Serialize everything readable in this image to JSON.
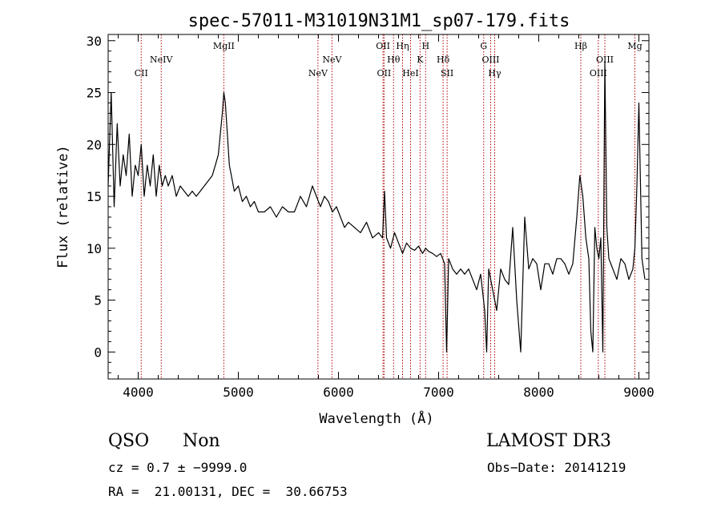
{
  "chart_data": {
    "type": "line",
    "title": "spec-57011-M31019N31M1_sp07-179.fits",
    "xlabel": "Wavelength (Å)",
    "ylabel": "Flux (relative)",
    "xlim": [
      3700,
      9100
    ],
    "ylim": [
      -2.6,
      30.6
    ],
    "x_ticks": [
      4000,
      5000,
      6000,
      7000,
      8000,
      9000
    ],
    "y_ticks": [
      0,
      5,
      10,
      15,
      20,
      25,
      30
    ],
    "spectrum_color": "#000000",
    "line_marker_color": "#b00000",
    "emission_lines": [
      {
        "label": "CII",
        "wavelength": 4030,
        "row": 2
      },
      {
        "label": "NeIV",
        "wavelength": 4230,
        "row": 1
      },
      {
        "label": "MgII",
        "wavelength": 4855,
        "row": 0
      },
      {
        "label": "NeV",
        "wavelength": 5795,
        "row": 2
      },
      {
        "label": "NeV",
        "wavelength": 5935,
        "row": 1
      },
      {
        "label": "OII",
        "wavelength": 6445,
        "row": 0
      },
      {
        "label": "OII",
        "wavelength": 6455,
        "row": 2
      },
      {
        "label": "Hθ",
        "wavelength": 6550,
        "row": 1
      },
      {
        "label": "Hη",
        "wavelength": 6640,
        "row": 0
      },
      {
        "label": "HeI",
        "wavelength": 6720,
        "row": 2
      },
      {
        "label": "K",
        "wavelength": 6815,
        "row": 1
      },
      {
        "label": "H",
        "wavelength": 6870,
        "row": 0
      },
      {
        "label": "Hδ",
        "wavelength": 7045,
        "row": 1
      },
      {
        "label": "SII",
        "wavelength": 7085,
        "row": 2
      },
      {
        "label": "G",
        "wavelength": 7450,
        "row": 0
      },
      {
        "label": "OIII",
        "wavelength": 7520,
        "row": 1
      },
      {
        "label": "Hγ",
        "wavelength": 7560,
        "row": 2
      },
      {
        "label": "Hβ",
        "wavelength": 8420,
        "row": 0
      },
      {
        "label": "OIII",
        "wavelength": 8595,
        "row": 2
      },
      {
        "label": "OIII",
        "wavelength": 8660,
        "row": 1
      },
      {
        "label": "Mg",
        "wavelength": 8960,
        "row": 0
      }
    ],
    "spectrum": {
      "x": [
        3700,
        3730,
        3760,
        3790,
        3820,
        3850,
        3880,
        3910,
        3940,
        3970,
        4000,
        4030,
        4060,
        4090,
        4120,
        4150,
        4180,
        4210,
        4240,
        4270,
        4300,
        4340,
        4380,
        4420,
        4460,
        4500,
        4540,
        4580,
        4620,
        4660,
        4700,
        4740,
        4770,
        4800,
        4820,
        4840,
        4855,
        4870,
        4890,
        4910,
        4930,
        4960,
        5000,
        5040,
        5080,
        5120,
        5160,
        5200,
        5260,
        5320,
        5380,
        5440,
        5500,
        5560,
        5620,
        5680,
        5740,
        5780,
        5820,
        5860,
        5900,
        5940,
        5980,
        6020,
        6060,
        6100,
        6160,
        6220,
        6280,
        6340,
        6400,
        6440,
        6460,
        6480,
        6520,
        6560,
        6600,
        6640,
        6680,
        6720,
        6760,
        6800,
        6840,
        6870,
        6900,
        6940,
        6980,
        7020,
        7060,
        7080,
        7100,
        7140,
        7180,
        7220,
        7260,
        7300,
        7340,
        7380,
        7420,
        7460,
        7480,
        7500,
        7540,
        7580,
        7620,
        7660,
        7700,
        7740,
        7780,
        7820,
        7860,
        7900,
        7940,
        7980,
        8020,
        8060,
        8100,
        8140,
        8180,
        8220,
        8260,
        8300,
        8340,
        8380,
        8410,
        8440,
        8470,
        8500,
        8520,
        8540,
        8560,
        8580,
        8600,
        8620,
        8640,
        8660,
        8680,
        8700,
        8740,
        8780,
        8820,
        8860,
        8900,
        8940,
        8960,
        8980,
        9000,
        9030,
        9060
      ],
      "flux": [
        16,
        25,
        14,
        22,
        16,
        19,
        17,
        21,
        15,
        18,
        17,
        20,
        15,
        18,
        16,
        19,
        15,
        18,
        16,
        17,
        16,
        17,
        15,
        16,
        15.5,
        15,
        15.5,
        15,
        15.5,
        16,
        16.5,
        17,
        18,
        19,
        21,
        23,
        25,
        24,
        21,
        18,
        17,
        15.5,
        16,
        14.5,
        15,
        14,
        14.5,
        13.5,
        13.5,
        14,
        13,
        14,
        13.5,
        13.5,
        15,
        14,
        16,
        15,
        14,
        15,
        14.5,
        13.5,
        14,
        13,
        12,
        12.5,
        12,
        11.5,
        12.5,
        11,
        11.5,
        11,
        15.5,
        11,
        10,
        11.5,
        10.5,
        9.5,
        10.5,
        10,
        9.8,
        10.2,
        9.5,
        10,
        9.7,
        9.5,
        9.2,
        9.5,
        8.5,
        0,
        9,
        8,
        7.5,
        8,
        7.5,
        8,
        7,
        6,
        7.5,
        4,
        0,
        8,
        6,
        4,
        8,
        7,
        6.5,
        12,
        5,
        0,
        13,
        8,
        9,
        8.5,
        6,
        8.5,
        8.5,
        7.5,
        9,
        9,
        8.5,
        7.5,
        8.5,
        13,
        17,
        15,
        11,
        9,
        2,
        0,
        12,
        10,
        9,
        11,
        0,
        28,
        12,
        9,
        8,
        7,
        9,
        8.5,
        7,
        8,
        10,
        16,
        24,
        9,
        7,
        6
      ]
    }
  },
  "footer": {
    "object_class": "QSO",
    "object_subclass": "Non",
    "survey": "LAMOST DR3",
    "redshift": "cz = 0.7 ± −9999.0",
    "obs_date": "Obs−Date: 20141219",
    "coordinates": "RA =  21.00131, DEC =  30.66753"
  }
}
